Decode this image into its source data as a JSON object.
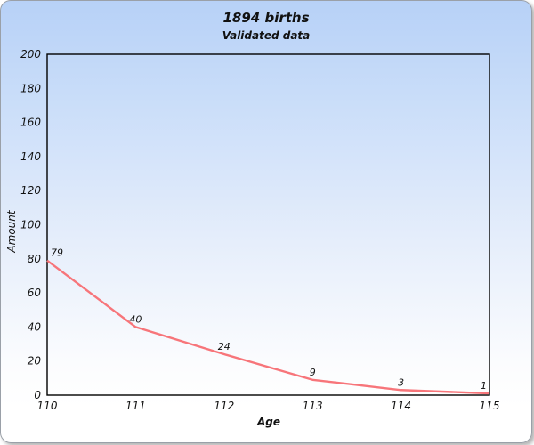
{
  "header": {
    "title": "1894 births",
    "subtitle": "Validated data"
  },
  "chart_data": {
    "type": "line",
    "title": "1894 births",
    "subtitle": "Validated data",
    "xlabel": "Age",
    "ylabel": "Amount",
    "x": [
      110,
      111,
      112,
      113,
      114,
      115
    ],
    "values": [
      79,
      40,
      24,
      9,
      3,
      1
    ],
    "point_labels": [
      "79",
      "40",
      "24",
      "9",
      "3",
      "1"
    ],
    "xticks": [
      110,
      111,
      112,
      113,
      114,
      115
    ],
    "yticks": [
      0,
      20,
      40,
      60,
      80,
      100,
      120,
      140,
      160,
      180,
      200
    ],
    "xlim": [
      110,
      115
    ],
    "ylim": [
      0,
      200
    ],
    "grid": false,
    "legend": "none",
    "line_color": "#f7757a",
    "plot_border_color": "#000000",
    "background_top_color": "#b7d1f7",
    "background_bottom_color": "#ffffff"
  }
}
